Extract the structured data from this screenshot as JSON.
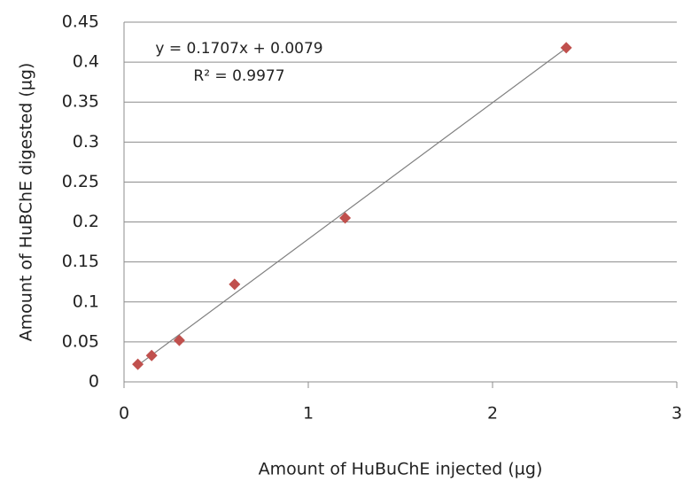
{
  "chart_data": {
    "type": "scatter",
    "x_label": "Amount of HuBuChE injected (µg)",
    "y_label": "Amount of HuBChE digested (µg)",
    "x": [
      0.075,
      0.15,
      0.3,
      0.6,
      1.2,
      2.4
    ],
    "values": [
      0.022,
      0.033,
      0.052,
      0.122,
      0.205,
      0.418
    ],
    "color": "#c0504d",
    "trendline": {
      "slope": 0.1707,
      "intercept": 0.0079,
      "color": "#808080"
    },
    "annotations": [
      "y = 0.1707x + 0.0079",
      "R² = 0.9977"
    ],
    "xlim": [
      0,
      3
    ],
    "xticks": [
      0,
      1,
      2,
      3
    ],
    "ylim": [
      0,
      0.45
    ],
    "yticks": [
      0,
      0.05,
      0.1,
      0.15,
      0.2,
      0.25,
      0.3,
      0.35,
      0.4,
      0.45
    ],
    "grid": true
  }
}
